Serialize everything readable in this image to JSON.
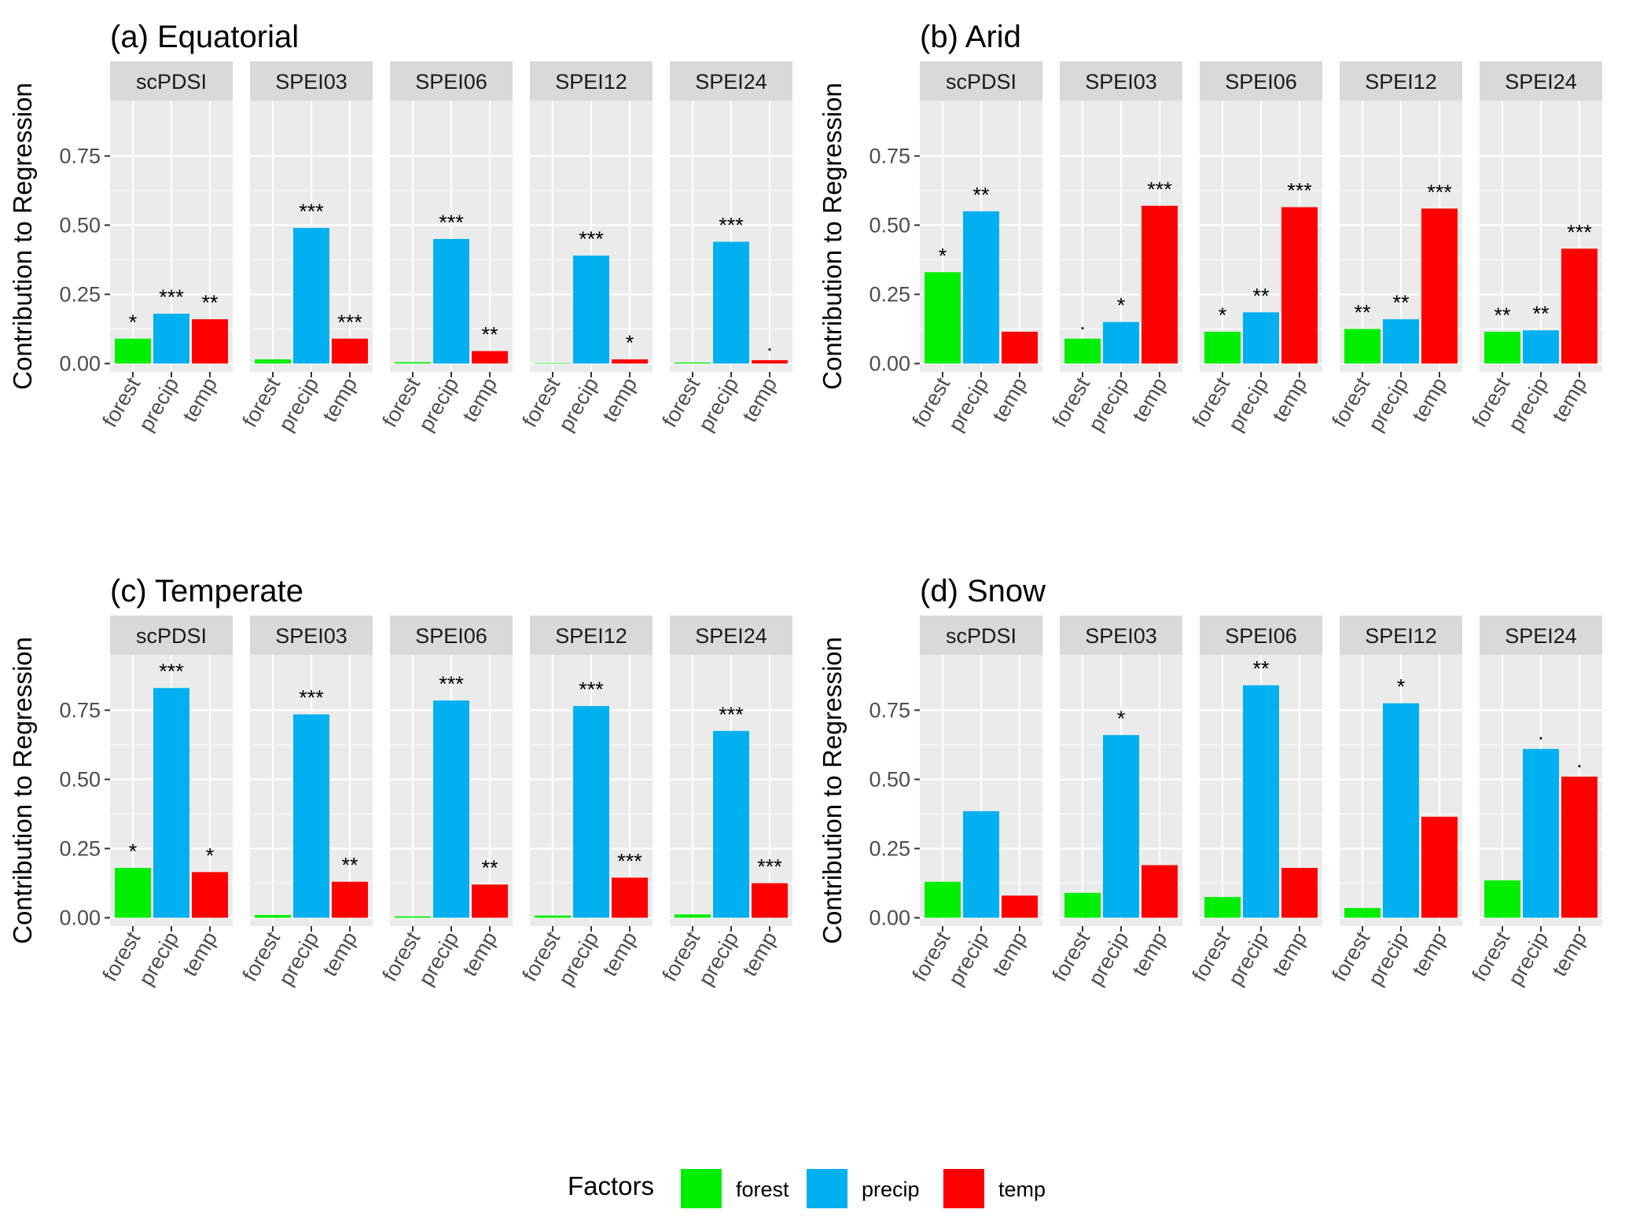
{
  "legend": {
    "title": "Factors",
    "items": [
      {
        "label": "forest",
        "color": "#00ee00"
      },
      {
        "label": "precip",
        "color": "#00b0f0"
      },
      {
        "label": "temp",
        "color": "#ff0000"
      }
    ]
  },
  "chart_data": {
    "type": "bar",
    "ylabel": "Contribution to Regression",
    "ylim": [
      -0.03,
      0.95
    ],
    "yticks": [
      0,
      0.25,
      0.5,
      0.75
    ],
    "ytick_labels": [
      "0.00",
      "0.25",
      "0.50",
      "0.75"
    ],
    "factors": [
      "forest",
      "precip",
      "temp"
    ],
    "facets": [
      "scPDSI",
      "SPEI03",
      "SPEI06",
      "SPEI12",
      "SPEI24"
    ],
    "panels": [
      {
        "title": "(a) Equatorial",
        "groups": [
          {
            "facet": "scPDSI",
            "values": [
              0.09,
              0.18,
              0.16
            ],
            "sig": [
              "*",
              "***",
              "**"
            ]
          },
          {
            "facet": "SPEI03",
            "values": [
              0.015,
              0.49,
              0.09
            ],
            "sig": [
              "",
              "***",
              "***"
            ]
          },
          {
            "facet": "SPEI06",
            "values": [
              0.005,
              0.45,
              0.045
            ],
            "sig": [
              "",
              "***",
              "**"
            ]
          },
          {
            "facet": "SPEI12",
            "values": [
              0.002,
              0.39,
              0.015
            ],
            "sig": [
              "",
              "***",
              "*"
            ]
          },
          {
            "facet": "SPEI24",
            "values": [
              0.004,
              0.44,
              0.012
            ],
            "sig": [
              "",
              "***",
              "."
            ]
          }
        ]
      },
      {
        "title": "(b) Arid",
        "groups": [
          {
            "facet": "scPDSI",
            "values": [
              0.33,
              0.55,
              0.115
            ],
            "sig": [
              "*",
              "**",
              ""
            ]
          },
          {
            "facet": "SPEI03",
            "values": [
              0.09,
              0.15,
              0.57
            ],
            "sig": [
              ".",
              "*",
              "***"
            ]
          },
          {
            "facet": "SPEI06",
            "values": [
              0.115,
              0.185,
              0.565
            ],
            "sig": [
              "*",
              "**",
              "***"
            ]
          },
          {
            "facet": "SPEI12",
            "values": [
              0.125,
              0.16,
              0.56
            ],
            "sig": [
              "**",
              "**",
              "***"
            ]
          },
          {
            "facet": "SPEI24",
            "values": [
              0.115,
              0.12,
              0.415
            ],
            "sig": [
              "**",
              "**",
              "***"
            ]
          }
        ]
      },
      {
        "title": "(c) Temperate",
        "groups": [
          {
            "facet": "scPDSI",
            "values": [
              0.18,
              0.83,
              0.165
            ],
            "sig": [
              "*",
              "***",
              "*"
            ]
          },
          {
            "facet": "SPEI03",
            "values": [
              0.01,
              0.735,
              0.13
            ],
            "sig": [
              "",
              "***",
              "**"
            ]
          },
          {
            "facet": "SPEI06",
            "values": [
              0.005,
              0.785,
              0.12
            ],
            "sig": [
              "",
              "***",
              "**"
            ]
          },
          {
            "facet": "SPEI12",
            "values": [
              0.008,
              0.765,
              0.145
            ],
            "sig": [
              "",
              "***",
              "***"
            ]
          },
          {
            "facet": "SPEI24",
            "values": [
              0.012,
              0.675,
              0.125
            ],
            "sig": [
              "",
              "***",
              "***"
            ]
          }
        ]
      },
      {
        "title": "(d) Snow",
        "groups": [
          {
            "facet": "scPDSI",
            "values": [
              0.13,
              0.385,
              0.08
            ],
            "sig": [
              "",
              "",
              ""
            ]
          },
          {
            "facet": "SPEI03",
            "values": [
              0.09,
              0.66,
              0.19
            ],
            "sig": [
              "",
              "*",
              ""
            ]
          },
          {
            "facet": "SPEI06",
            "values": [
              0.075,
              0.84,
              0.18
            ],
            "sig": [
              "",
              "**",
              ""
            ]
          },
          {
            "facet": "SPEI12",
            "values": [
              0.035,
              0.775,
              0.365
            ],
            "sig": [
              "",
              "*",
              ""
            ]
          },
          {
            "facet": "SPEI24",
            "values": [
              0.135,
              0.61,
              0.51
            ],
            "sig": [
              "",
              ".",
              "."
            ]
          }
        ]
      }
    ]
  }
}
